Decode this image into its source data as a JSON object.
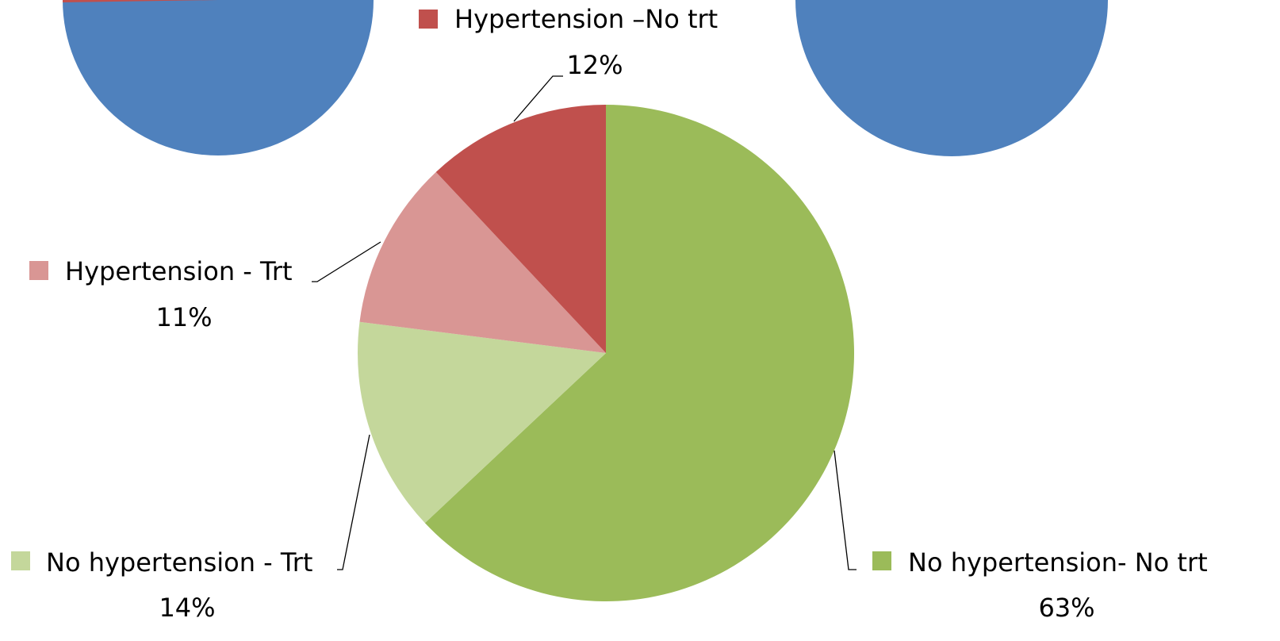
{
  "chart_data": {
    "type": "pie",
    "categories": [
      "No hypertension- No trt",
      "No hypertension - Trt",
      "Hypertension - Trt",
      "Hypertension –No trt"
    ],
    "values": [
      63,
      14,
      11,
      12
    ],
    "value_labels": [
      "63%",
      "14%",
      "11%",
      "12%"
    ],
    "colors": [
      "#9BBB59",
      "#C4D79B",
      "#D99694",
      "#C0504D"
    ]
  }
}
